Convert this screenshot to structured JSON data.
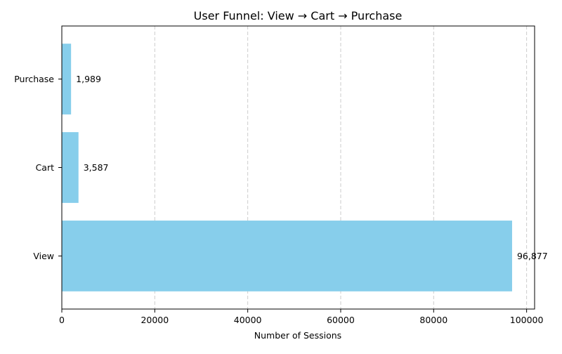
{
  "chart_data": {
    "type": "bar",
    "orientation": "horizontal",
    "title": "User Funnel: View → Cart → Purchase",
    "xlabel": "Number of Sessions",
    "ylabel": "",
    "categories": [
      "View",
      "Cart",
      "Purchase"
    ],
    "values": [
      96877,
      3587,
      1989
    ],
    "value_labels": [
      "96,877",
      "3,587",
      "1,989"
    ],
    "xlim": [
      0,
      101720
    ],
    "xticks": [
      0,
      20000,
      40000,
      60000,
      80000,
      100000
    ],
    "xtick_labels": [
      "0",
      "20000",
      "40000",
      "60000",
      "80000",
      "100000"
    ],
    "grid": {
      "x": true,
      "y": false,
      "style": "dashed"
    },
    "legend": "none",
    "colors": {
      "bar": "#87ceeb",
      "grid": "#cccccc",
      "axis": "#000000"
    }
  }
}
